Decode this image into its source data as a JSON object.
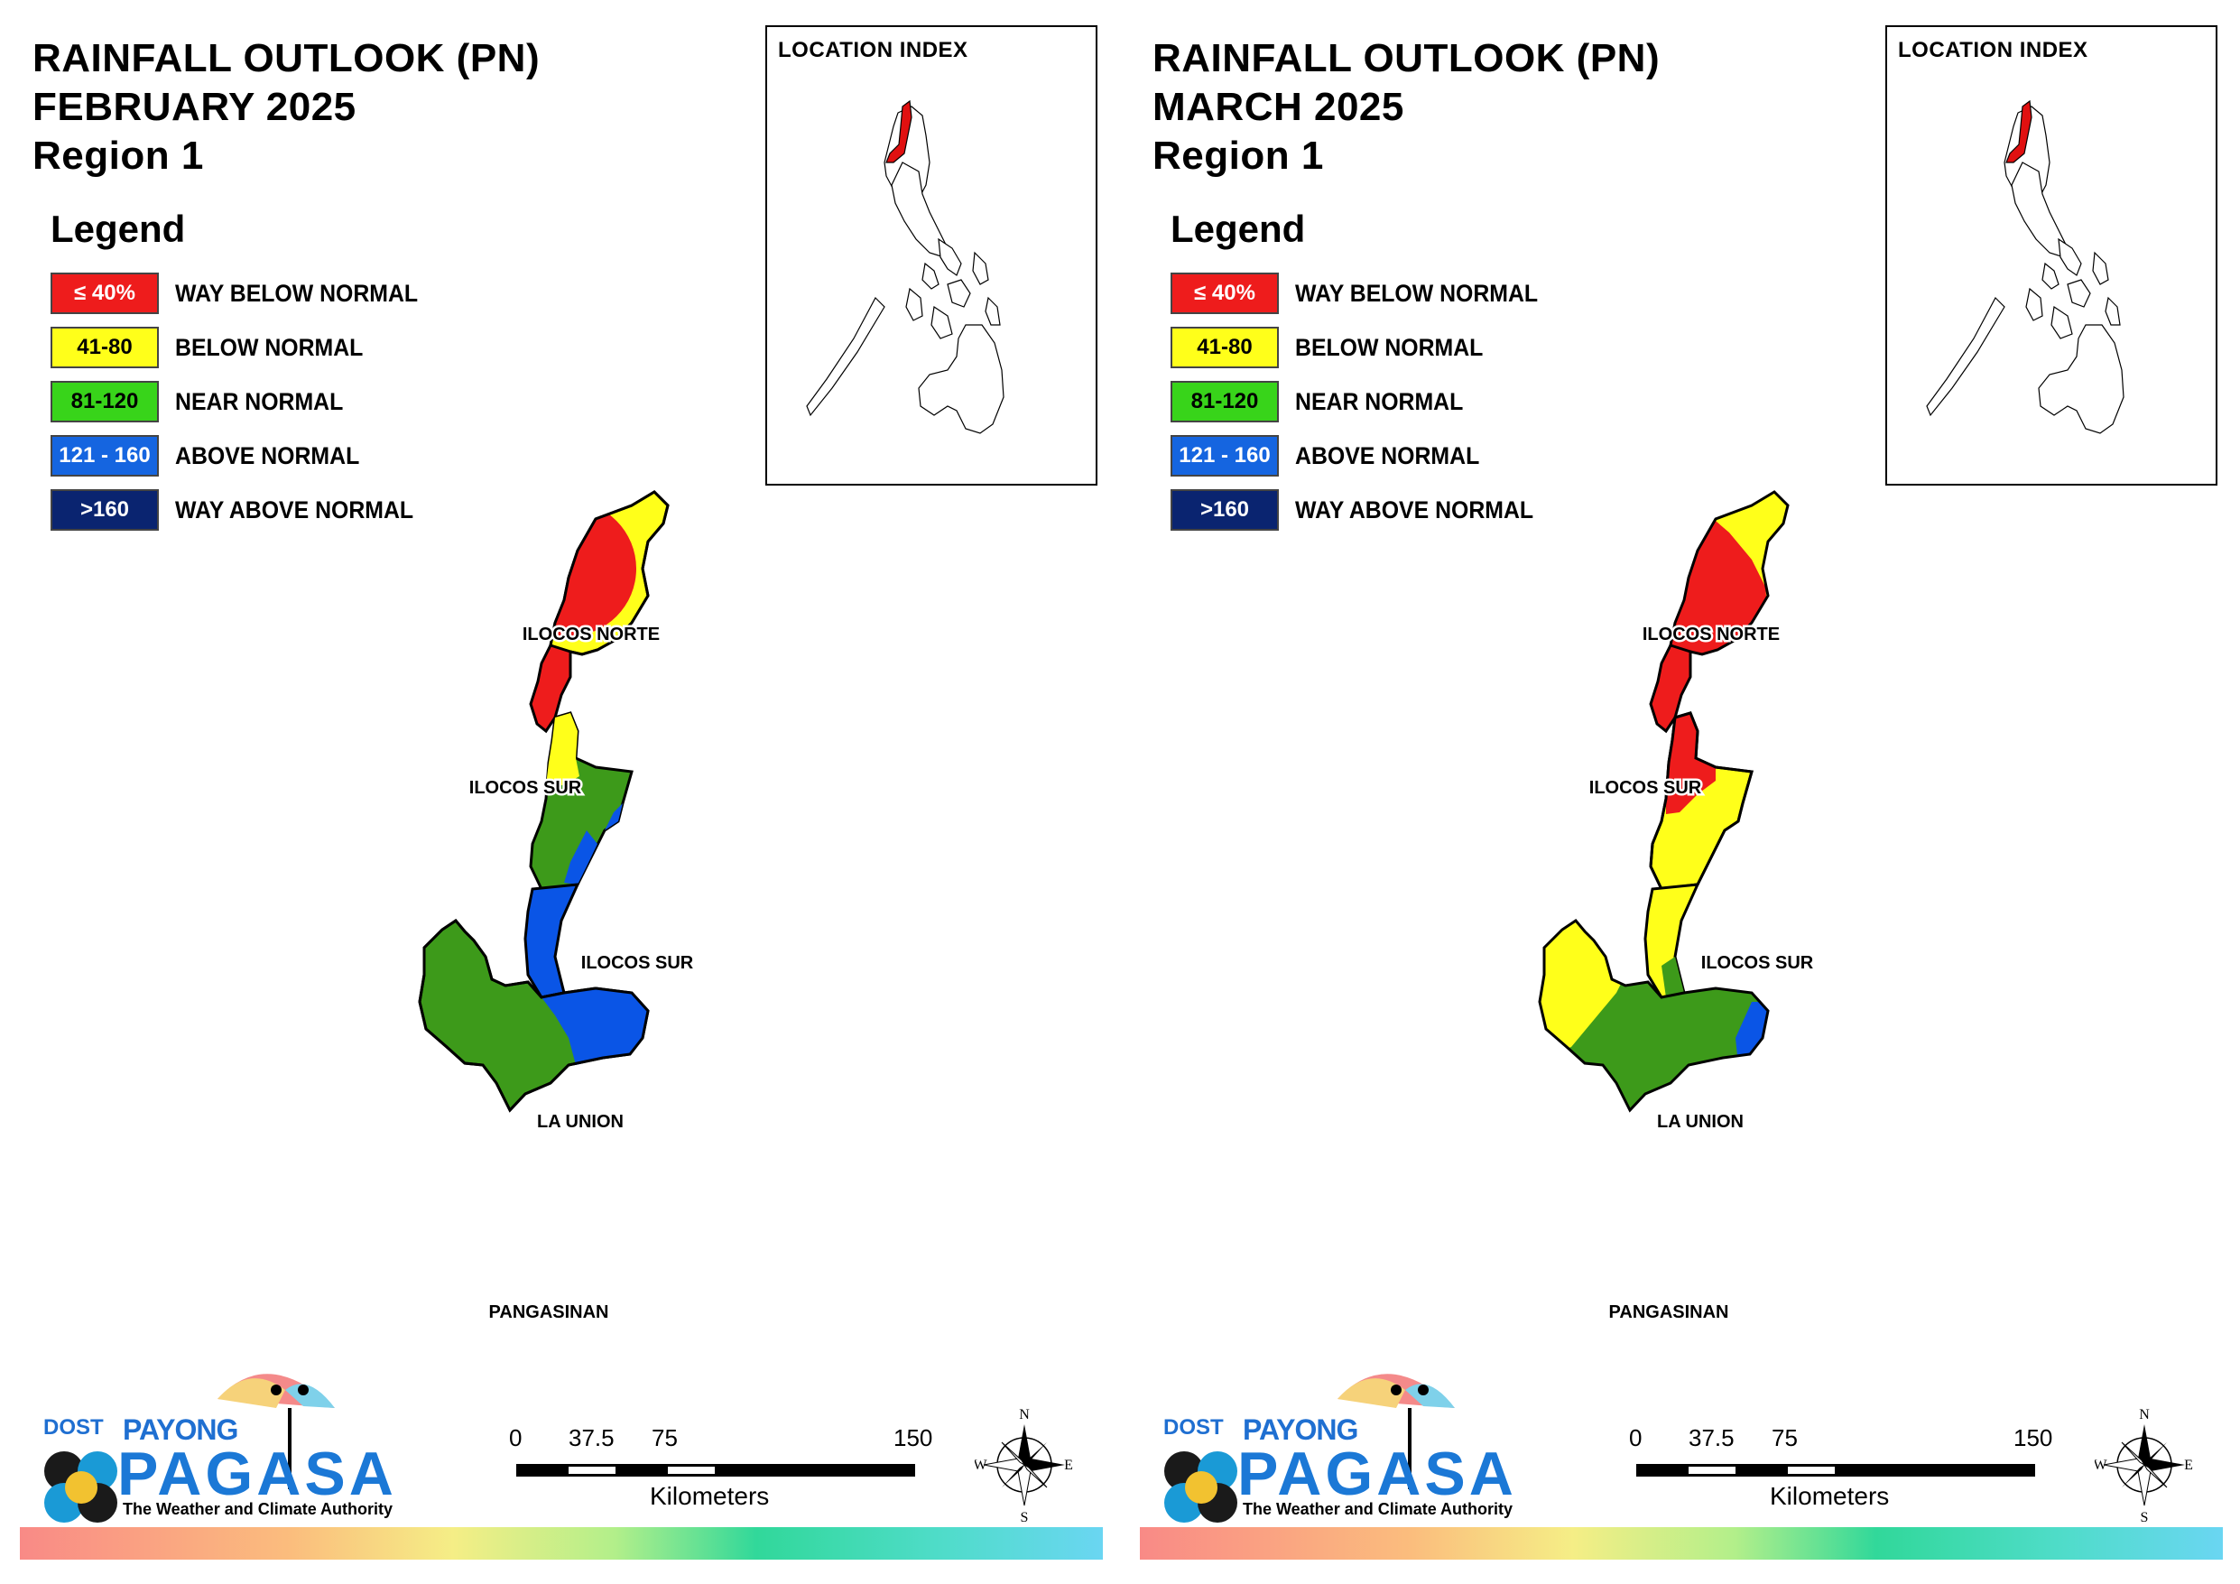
{
  "panels": [
    {
      "title_lines": [
        "RAINFALL OUTLOOK (PN)",
        "FEBRUARY 2025",
        "Region 1"
      ],
      "legend_title": "Legend",
      "legend": [
        {
          "swatch": "≤ 40%",
          "label": "WAY BELOW NORMAL",
          "color": "#ee1c1c",
          "text_color": "#ffffff"
        },
        {
          "swatch": "41-80",
          "label": "BELOW NORMAL",
          "color": "#ffff1a",
          "text_color": "#000000"
        },
        {
          "swatch": "81-120",
          "label": "NEAR NORMAL",
          "color": "#38d41a",
          "text_color": "#000000"
        },
        {
          "swatch": "121 - 160",
          "label": "ABOVE NORMAL",
          "color": "#1565e0",
          "text_color": "#ffffff"
        },
        {
          "swatch": ">160",
          "label": "WAY ABOVE NORMAL",
          "color": "#0a2470",
          "text_color": "#ffffff"
        }
      ],
      "location_index_title": "LOCATION INDEX",
      "map_labels": [
        "ILOCOS NORTE",
        "ILOCOS SUR",
        "ILOCOS SUR",
        "LA UNION",
        "PANGASINAN"
      ],
      "scale": {
        "ticks": [
          "0",
          "37.5",
          "75",
          "150"
        ],
        "unit": "Kilometers"
      },
      "compass": {
        "n": "N",
        "s": "S",
        "e": "E",
        "w": "W"
      },
      "logo": {
        "dost": "DOST",
        "payong": "PAYONG",
        "pagasa": "PAGASA",
        "tagline": "The Weather and Climate Authority"
      }
    },
    {
      "title_lines": [
        "RAINFALL OUTLOOK (PN)",
        "MARCH 2025",
        "Region 1"
      ],
      "legend_title": "Legend",
      "legend": [
        {
          "swatch": "≤ 40%",
          "label": "WAY BELOW NORMAL",
          "color": "#ee1c1c",
          "text_color": "#ffffff"
        },
        {
          "swatch": "41-80",
          "label": "BELOW NORMAL",
          "color": "#ffff1a",
          "text_color": "#000000"
        },
        {
          "swatch": "81-120",
          "label": "NEAR NORMAL",
          "color": "#38d41a",
          "text_color": "#000000"
        },
        {
          "swatch": "121 - 160",
          "label": "ABOVE NORMAL",
          "color": "#1565e0",
          "text_color": "#ffffff"
        },
        {
          "swatch": ">160",
          "label": "WAY ABOVE NORMAL",
          "color": "#0a2470",
          "text_color": "#ffffff"
        }
      ],
      "location_index_title": "LOCATION INDEX",
      "map_labels": [
        "ILOCOS NORTE",
        "ILOCOS SUR",
        "ILOCOS SUR",
        "LA UNION",
        "PANGASINAN"
      ],
      "scale": {
        "ticks": [
          "0",
          "37.5",
          "75",
          "150"
        ],
        "unit": "Kilometers"
      },
      "compass": {
        "n": "N",
        "s": "S",
        "e": "E",
        "w": "W"
      },
      "logo": {
        "dost": "DOST",
        "payong": "PAYONG",
        "pagasa": "PAGASA",
        "tagline": "The Weather and Climate Authority"
      }
    }
  ],
  "colors": {
    "red": "#ee1c1c",
    "yellow": "#ffff1a",
    "green": "#3d9a1a",
    "blue": "#0a55e6",
    "outline": "#000000",
    "index_highlight": "#e01010"
  }
}
